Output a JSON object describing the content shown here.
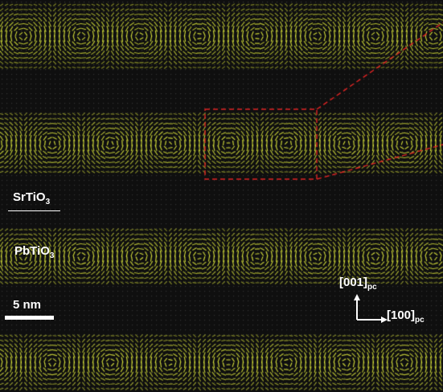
{
  "image": {
    "layers": {
      "top": "SrTiO3",
      "bottom": "PbTiO3"
    },
    "vector_color": "#d8e23a",
    "zoom_box_color": "#e02424"
  },
  "labels": {
    "srtio3": {
      "main": "SrTiO",
      "sub": "3"
    },
    "pbtio3": {
      "main": "PbTiO",
      "sub": "3"
    },
    "scale_bar": "5 nm",
    "axis_001": {
      "main": "[001]",
      "sub": "pc"
    },
    "axis_100": {
      "main": "[100]",
      "sub": "pc"
    }
  }
}
